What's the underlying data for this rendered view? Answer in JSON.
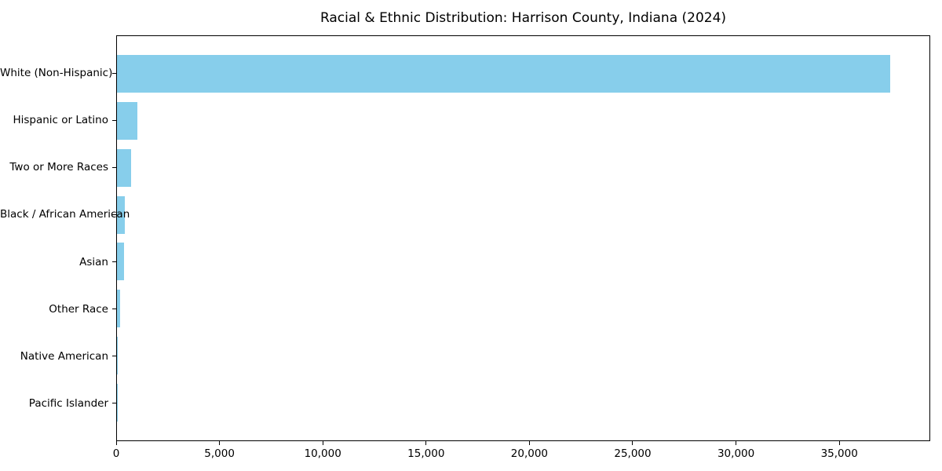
{
  "chart_data": {
    "type": "bar",
    "orientation": "horizontal",
    "title": "Racial & Ethnic Distribution: Harrison County, Indiana (2024)",
    "categories": [
      "White (Non-Hispanic)",
      "Hispanic or Latino",
      "Two or More Races",
      "Black / African American",
      "Asian",
      "Other Race",
      "Native American",
      "Pacific Islander"
    ],
    "values": [
      37500,
      1000,
      680,
      390,
      340,
      150,
      20,
      5
    ],
    "xlabel": "",
    "ylabel": "",
    "xlim": [
      0,
      39400
    ],
    "xticks": [
      {
        "value": 0,
        "label": "0"
      },
      {
        "value": 5000,
        "label": "5,000"
      },
      {
        "value": 10000,
        "label": "10,000"
      },
      {
        "value": 15000,
        "label": "15,000"
      },
      {
        "value": 20000,
        "label": "20,000"
      },
      {
        "value": 25000,
        "label": "25,000"
      },
      {
        "value": 30000,
        "label": "30,000"
      },
      {
        "value": 35000,
        "label": "35,000"
      }
    ],
    "grid": false,
    "legend_position": "none"
  },
  "colors": {
    "bar": "#87CEEB",
    "axis": "#000000",
    "text": "#000000",
    "background": "#FFFFFF"
  }
}
